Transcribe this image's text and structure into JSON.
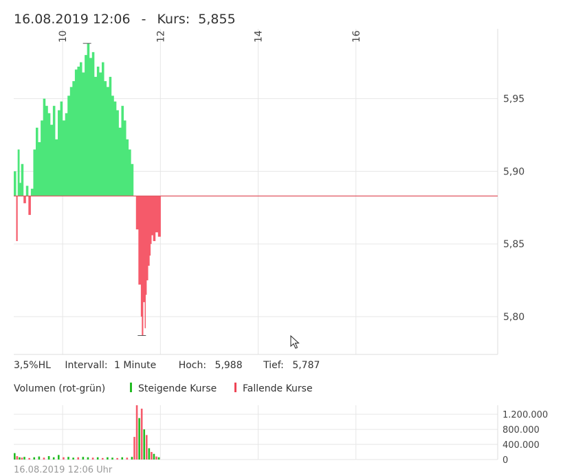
{
  "header": {
    "datetime": "16.08.2019 12:06",
    "separator": "-",
    "kurs_label": "Kurs:",
    "kurs_value": "5,855"
  },
  "info": {
    "hl": "3,5%HL",
    "interval_label": "Intervall:",
    "interval_value": "1 Minute",
    "high_label": "Hoch:",
    "high_value": "5,988",
    "low_label": "Tief:",
    "low_value": "5,787"
  },
  "volume_legend": {
    "title": "Volumen (rot-grün)",
    "rising": "Steigende Kurse",
    "falling": "Fallende Kurse"
  },
  "footer": {
    "timestamp": "16.08.2019 12:06 Uhr"
  },
  "colors": {
    "rising": "#4ce67a",
    "falling": "#f55a6a",
    "rising_marker": "#22bb22",
    "falling_marker": "#ee4455",
    "baseline": "#e05560",
    "grid": "#e6e6e6"
  },
  "chart_data": [
    {
      "type": "area",
      "x_ticks": [
        "10",
        "12",
        "14",
        "16"
      ],
      "x_tick_hours": [
        10,
        12,
        14,
        16
      ],
      "x_range_hours": [
        9,
        18.9
      ],
      "y_ticks": [
        "5,80",
        "5,85",
        "5,90",
        "5,95"
      ],
      "y_tick_values": [
        5.8,
        5.85,
        5.9,
        5.95
      ],
      "ylim": [
        5.774,
        5.998
      ],
      "baseline": 5.883,
      "high": 5.988,
      "low": 5.787,
      "series": {
        "x": [
          9.0,
          9.05,
          9.08,
          9.12,
          9.15,
          9.2,
          9.25,
          9.3,
          9.35,
          9.4,
          9.45,
          9.5,
          9.55,
          9.6,
          9.65,
          9.7,
          9.75,
          9.8,
          9.85,
          9.9,
          9.95,
          10.0,
          10.05,
          10.1,
          10.15,
          10.2,
          10.25,
          10.3,
          10.35,
          10.4,
          10.45,
          10.5,
          10.55,
          10.6,
          10.65,
          10.7,
          10.75,
          10.8,
          10.85,
          10.9,
          10.95,
          11.0,
          11.05,
          11.1,
          11.15,
          11.2,
          11.25,
          11.3,
          11.35,
          11.4,
          11.45,
          11.5,
          11.55,
          11.6,
          11.62,
          11.65,
          11.68,
          11.7,
          11.72,
          11.75,
          11.78,
          11.8,
          11.82,
          11.85,
          11.9,
          11.95,
          11.98
        ],
        "y": [
          5.9,
          5.852,
          5.915,
          5.892,
          5.905,
          5.878,
          5.89,
          5.87,
          5.888,
          5.915,
          5.93,
          5.92,
          5.935,
          5.95,
          5.945,
          5.94,
          5.932,
          5.945,
          5.922,
          5.942,
          5.948,
          5.935,
          5.94,
          5.952,
          5.958,
          5.962,
          5.97,
          5.972,
          5.975,
          5.968,
          5.98,
          5.988,
          5.978,
          5.982,
          5.965,
          5.972,
          5.968,
          5.975,
          5.962,
          5.958,
          5.965,
          5.952,
          5.948,
          5.942,
          5.93,
          5.945,
          5.935,
          5.922,
          5.915,
          5.905,
          5.883,
          5.86,
          5.822,
          5.8,
          5.787,
          5.81,
          5.792,
          5.815,
          5.825,
          5.835,
          5.842,
          5.85,
          5.856,
          5.852,
          5.858,
          5.855,
          5.855
        ]
      }
    },
    {
      "type": "bar",
      "y_ticks": [
        "0",
        "400.000",
        "800.000",
        "1.200.000"
      ],
      "y_tick_values": [
        0,
        400000,
        800000,
        1200000
      ],
      "ylim": [
        0,
        1440000
      ],
      "bars": [
        {
          "x": 9.0,
          "value": 170000,
          "dir": "up"
        },
        {
          "x": 9.05,
          "value": 90000,
          "dir": "down"
        },
        {
          "x": 9.1,
          "value": 60000,
          "dir": "up"
        },
        {
          "x": 9.15,
          "value": 50000,
          "dir": "down"
        },
        {
          "x": 9.2,
          "value": 70000,
          "dir": "up"
        },
        {
          "x": 9.3,
          "value": 40000,
          "dir": "down"
        },
        {
          "x": 9.4,
          "value": 60000,
          "dir": "up"
        },
        {
          "x": 9.5,
          "value": 80000,
          "dir": "up"
        },
        {
          "x": 9.6,
          "value": 50000,
          "dir": "down"
        },
        {
          "x": 9.7,
          "value": 90000,
          "dir": "up"
        },
        {
          "x": 9.8,
          "value": 60000,
          "dir": "up"
        },
        {
          "x": 9.9,
          "value": 120000,
          "dir": "up"
        },
        {
          "x": 10.0,
          "value": 60000,
          "dir": "down"
        },
        {
          "x": 10.1,
          "value": 70000,
          "dir": "up"
        },
        {
          "x": 10.2,
          "value": 50000,
          "dir": "up"
        },
        {
          "x": 10.3,
          "value": 60000,
          "dir": "down"
        },
        {
          "x": 10.4,
          "value": 70000,
          "dir": "up"
        },
        {
          "x": 10.5,
          "value": 60000,
          "dir": "up"
        },
        {
          "x": 10.6,
          "value": 50000,
          "dir": "down"
        },
        {
          "x": 10.7,
          "value": 60000,
          "dir": "up"
        },
        {
          "x": 10.8,
          "value": 40000,
          "dir": "down"
        },
        {
          "x": 10.9,
          "value": 60000,
          "dir": "up"
        },
        {
          "x": 11.0,
          "value": 50000,
          "dir": "up"
        },
        {
          "x": 11.1,
          "value": 40000,
          "dir": "down"
        },
        {
          "x": 11.2,
          "value": 60000,
          "dir": "up"
        },
        {
          "x": 11.3,
          "value": 50000,
          "dir": "down"
        },
        {
          "x": 11.4,
          "value": 70000,
          "dir": "up"
        },
        {
          "x": 11.45,
          "value": 600000,
          "dir": "down"
        },
        {
          "x": 11.5,
          "value": 1440000,
          "dir": "down"
        },
        {
          "x": 11.55,
          "value": 1100000,
          "dir": "up"
        },
        {
          "x": 11.6,
          "value": 1350000,
          "dir": "down"
        },
        {
          "x": 11.65,
          "value": 800000,
          "dir": "up"
        },
        {
          "x": 11.7,
          "value": 650000,
          "dir": "down"
        },
        {
          "x": 11.75,
          "value": 300000,
          "dir": "up"
        },
        {
          "x": 11.8,
          "value": 200000,
          "dir": "down"
        },
        {
          "x": 11.85,
          "value": 150000,
          "dir": "up"
        },
        {
          "x": 11.9,
          "value": 80000,
          "dir": "down"
        },
        {
          "x": 11.95,
          "value": 60000,
          "dir": "up"
        }
      ]
    }
  ]
}
